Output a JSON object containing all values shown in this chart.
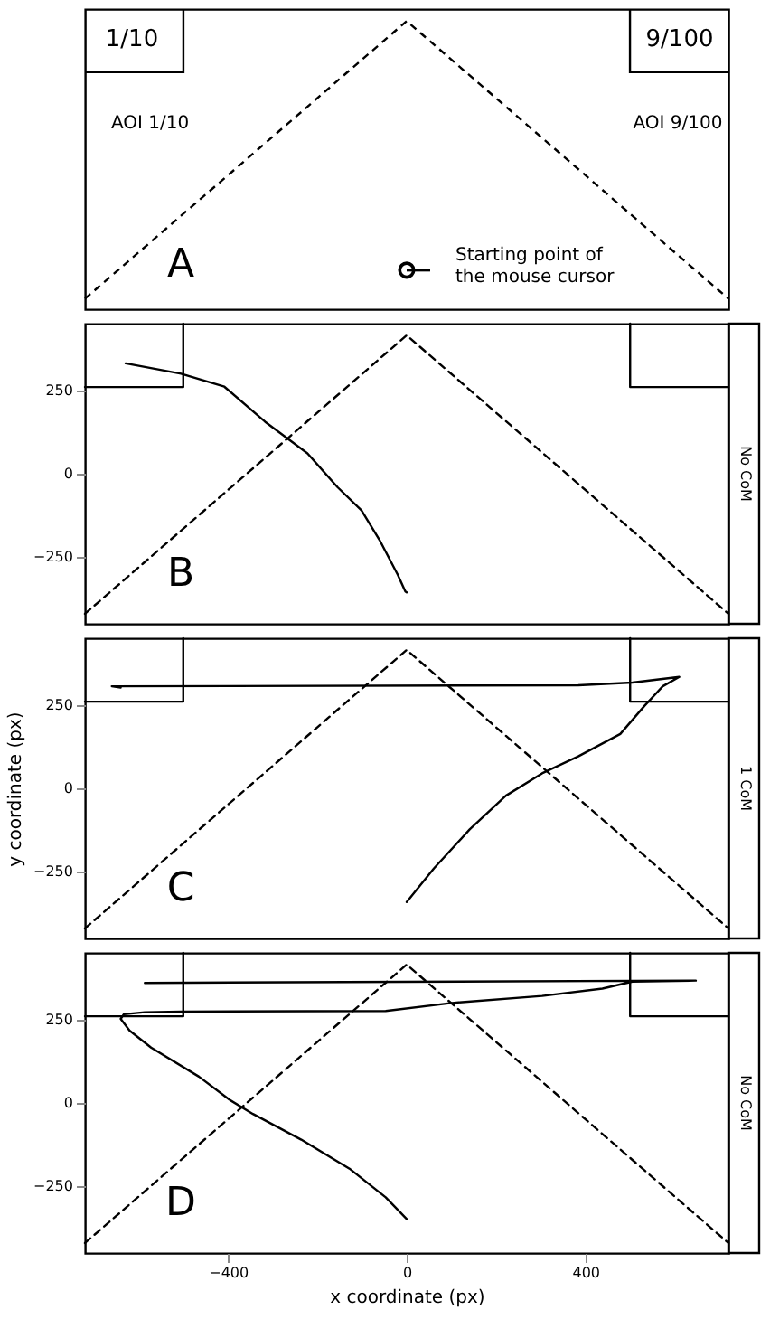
{
  "chart_data": [
    {
      "type": "other",
      "annotations": [
        "1/10",
        "9/100",
        "AOI 1/10",
        "AOI 9/100",
        "A",
        "Starting point of the mouse cursor"
      ]
    },
    {
      "type": "line",
      "xlim": [
        -720,
        720
      ],
      "ylim": [
        -450,
        450
      ],
      "yticks": [
        -250,
        0,
        250
      ],
      "tick_labels": "y",
      "annotations": [
        "B",
        "No CoM"
      ],
      "series": [
        {
          "color": "#000000",
          "line_style": "dashed",
          "x": [
            -720,
            0,
            720
          ],
          "values": [
            -420,
            415,
            -420
          ]
        },
        {
          "color": "#000000",
          "line_style": "solid",
          "x": [
            -720,
            -500,
            -500
          ],
          "values": [
            260,
            260,
            450
          ]
        },
        {
          "color": "#000000",
          "line_style": "solid",
          "x": [
            720,
            500,
            500
          ],
          "values": [
            260,
            260,
            450
          ]
        },
        {
          "color": "#000000",
          "line_style": "solid",
          "x": [
            0,
            -3,
            -20,
            -61,
            -101,
            -155,
            -222,
            -317,
            -408,
            -505,
            -629
          ],
          "values": [
            -356,
            -353,
            -303,
            -198,
            -110,
            -40,
            61,
            156,
            261,
            300,
            331
          ]
        }
      ]
    },
    {
      "type": "line",
      "ylabel": "y coordinate (px)",
      "xlim": [
        -720,
        720
      ],
      "ylim": [
        -450,
        450
      ],
      "yticks": [
        -250,
        0,
        250
      ],
      "tick_labels": "y",
      "annotations": [
        "C",
        "1 CoM"
      ],
      "series": [
        {
          "color": "#000000",
          "line_style": "dashed",
          "x": [
            -720,
            0,
            720
          ],
          "values": [
            -420,
            415,
            -420
          ]
        },
        {
          "color": "#000000",
          "line_style": "solid",
          "x": [
            -720,
            -500,
            -500
          ],
          "values": [
            260,
            260,
            450
          ]
        },
        {
          "color": "#000000",
          "line_style": "solid",
          "x": [
            720,
            500,
            500
          ],
          "values": [
            260,
            260,
            450
          ]
        },
        {
          "color": "#000000",
          "line_style": "solid",
          "x": [
            0,
            61,
            141,
            222,
            303,
            384,
            478,
            532,
            573,
            610,
            505,
            384,
            -660,
            -640
          ],
          "values": [
            -341,
            -240,
            -123,
            -22,
            45,
            96,
            163,
            247,
            306,
            334,
            317,
            309,
            306,
            302
          ]
        }
      ]
    },
    {
      "type": "line",
      "xlabel": "x coordinate (px)",
      "xlim": [
        -720,
        720
      ],
      "ylim": [
        -450,
        450
      ],
      "xticks": [
        -400,
        0,
        400
      ],
      "yticks": [
        -250,
        0,
        250
      ],
      "annotations": [
        "D",
        "No CoM"
      ],
      "series": [
        {
          "color": "#000000",
          "line_style": "dashed",
          "x": [
            -720,
            0,
            720
          ],
          "values": [
            -420,
            415,
            -420
          ]
        },
        {
          "color": "#000000",
          "line_style": "solid",
          "x": [
            -720,
            -500,
            -500
          ],
          "values": [
            260,
            260,
            450
          ]
        },
        {
          "color": "#000000",
          "line_style": "solid",
          "x": [
            720,
            500,
            500
          ],
          "values": [
            260,
            260,
            450
          ]
        },
        {
          "color": "#000000",
          "line_style": "solid",
          "x": [
            0,
            -47,
            -128,
            -236,
            -344,
            -397,
            -465,
            -572,
            -620,
            -640,
            -633,
            -586,
            -505,
            -47,
            101,
            303,
            438,
            505,
            647,
            -586
          ],
          "values": [
            -348,
            -283,
            -197,
            -110,
            -33,
            10,
            79,
            166,
            217,
            252,
            266,
            272,
            274,
            276,
            300,
            321,
            343,
            364,
            367,
            360
          ]
        }
      ]
    }
  ]
}
